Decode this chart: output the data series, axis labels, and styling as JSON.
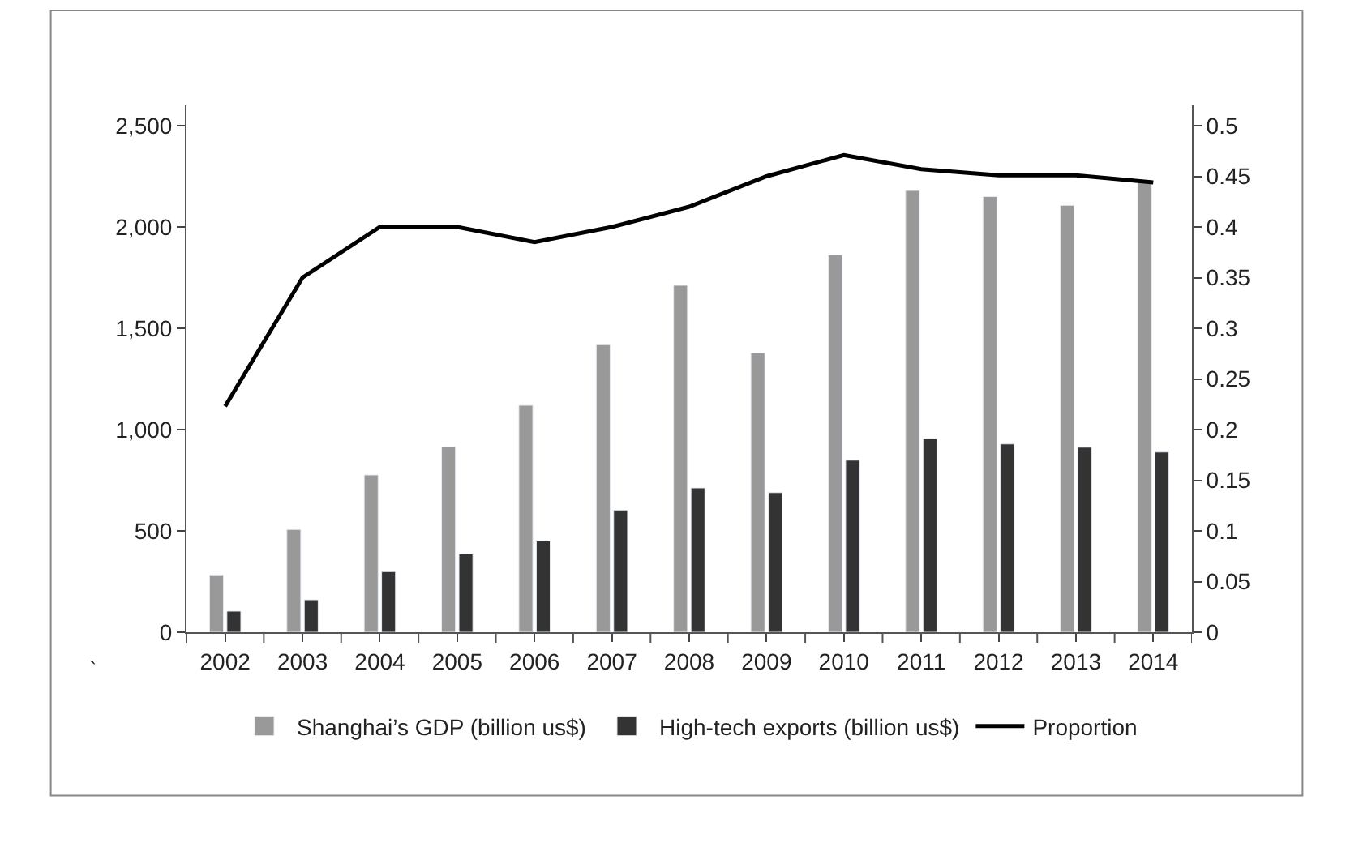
{
  "chart_data": {
    "type": "bar",
    "categories": [
      "2002",
      "2003",
      "2004",
      "2005",
      "2006",
      "2007",
      "2008",
      "2009",
      "2010",
      "2011",
      "2012",
      "2013",
      "2014"
    ],
    "series": [
      {
        "name": "Shanghai’s GDP (billion us$)",
        "color": "#999999",
        "values": [
          283,
          507,
          776,
          915,
          1120,
          1419,
          1712,
          1378,
          1862,
          2180,
          2150,
          2107,
          2220
        ]
      },
      {
        "name": "High-tech exports (billion us$)",
        "color": "#333333",
        "values": [
          104,
          160,
          299,
          387,
          451,
          603,
          712,
          689,
          849,
          956,
          929,
          913,
          889
        ]
      },
      {
        "name": "Proportion",
        "type": "line",
        "axis": "y2",
        "color": "#000000",
        "marker": "none",
        "line_style": "solid",
        "values": [
          0.223,
          0.35,
          0.4,
          0.4,
          0.385,
          0.4,
          0.42,
          0.45,
          0.471,
          0.457,
          0.451,
          0.451,
          0.444
        ]
      }
    ],
    "ylim": [
      0,
      2600
    ],
    "yticks": [
      0,
      500,
      {
        "value": 1000,
        "label": "1,000"
      },
      {
        "value": 1500,
        "label": "1,500"
      },
      {
        "value": 2000,
        "label": "2,000"
      },
      {
        "value": 2500,
        "label": "2,500"
      }
    ],
    "y2lim": [
      0,
      0.52
    ],
    "y2ticks": [
      0,
      0.05,
      0.1,
      0.15,
      0.2,
      0.25,
      0.3,
      0.35,
      0.4,
      0.45,
      0.5
    ],
    "annotations": [
      "`"
    ],
    "legend": "bottom"
  }
}
